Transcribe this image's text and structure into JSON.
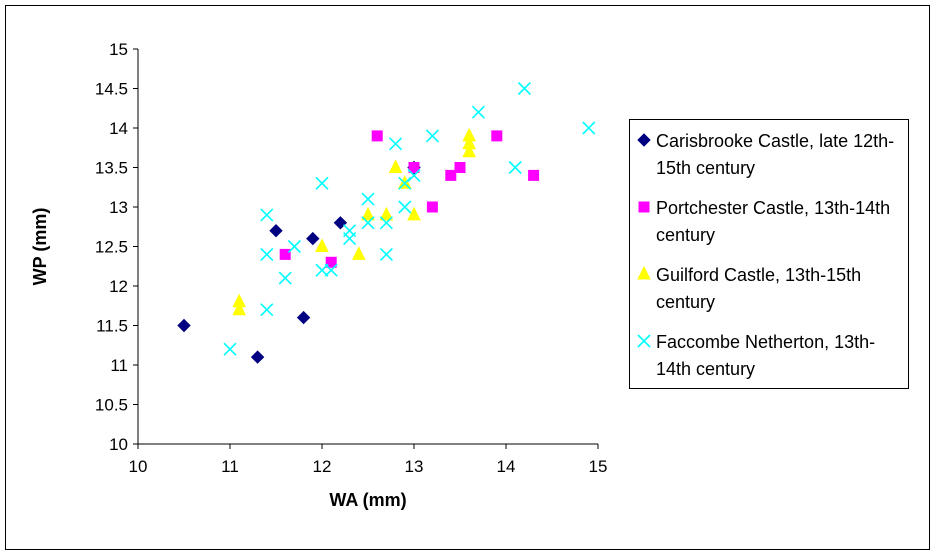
{
  "chart_data": {
    "type": "scatter",
    "xlabel": "WA (mm)",
    "ylabel": "WP (mm)",
    "xlim": [
      10,
      15
    ],
    "ylim": [
      10,
      15
    ],
    "x_ticks": [
      "10",
      "11",
      "12",
      "13",
      "14",
      "15"
    ],
    "y_ticks": [
      "10",
      "10.5",
      "11",
      "11.5",
      "12",
      "12.5",
      "13",
      "13.5",
      "14",
      "14.5",
      "15"
    ],
    "grid": false,
    "legend_position": "right",
    "series": [
      {
        "name": "Carisbrooke Castle, late 12th-15th century",
        "marker": "diamond",
        "color": "#000080",
        "points": [
          [
            10.5,
            11.5
          ],
          [
            11.3,
            11.1
          ],
          [
            11.5,
            12.7
          ],
          [
            11.8,
            11.6
          ],
          [
            11.9,
            12.6
          ],
          [
            12.2,
            12.8
          ],
          [
            13.0,
            13.5
          ]
        ]
      },
      {
        "name": "Portchester Castle, 13th-14th century",
        "marker": "square",
        "color": "#FF00FF",
        "points": [
          [
            11.6,
            12.4
          ],
          [
            12.1,
            12.3
          ],
          [
            12.6,
            13.9
          ],
          [
            13.0,
            13.5
          ],
          [
            13.2,
            13.0
          ],
          [
            13.4,
            13.4
          ],
          [
            13.5,
            13.5
          ],
          [
            13.9,
            13.9
          ],
          [
            14.3,
            13.4
          ]
        ]
      },
      {
        "name": "Guilford Castle, 13th-15th century",
        "marker": "triangle",
        "color": "#FFFF00",
        "points": [
          [
            11.1,
            11.8
          ],
          [
            11.1,
            11.7
          ],
          [
            12.0,
            12.5
          ],
          [
            12.4,
            12.4
          ],
          [
            12.5,
            12.9
          ],
          [
            12.7,
            12.9
          ],
          [
            12.8,
            13.5
          ],
          [
            12.9,
            13.3
          ],
          [
            13.0,
            12.9
          ],
          [
            13.6,
            13.9
          ],
          [
            13.6,
            13.8
          ],
          [
            13.6,
            13.7
          ]
        ]
      },
      {
        "name": "Faccombe Netherton, 13th-14th century",
        "marker": "x",
        "color": "#00FFFF",
        "points": [
          [
            11.0,
            11.2
          ],
          [
            11.4,
            11.7
          ],
          [
            11.4,
            12.4
          ],
          [
            11.4,
            12.9
          ],
          [
            11.6,
            12.1
          ],
          [
            11.7,
            12.5
          ],
          [
            12.0,
            12.2
          ],
          [
            12.0,
            13.3
          ],
          [
            12.1,
            12.2
          ],
          [
            12.3,
            12.6
          ],
          [
            12.3,
            12.7
          ],
          [
            12.5,
            12.8
          ],
          [
            12.5,
            13.1
          ],
          [
            12.7,
            12.4
          ],
          [
            12.7,
            12.8
          ],
          [
            12.8,
            13.8
          ],
          [
            12.9,
            13.0
          ],
          [
            12.9,
            13.3
          ],
          [
            13.0,
            13.4
          ],
          [
            13.2,
            13.9
          ],
          [
            13.7,
            14.2
          ],
          [
            14.1,
            13.5
          ],
          [
            14.2,
            14.5
          ],
          [
            14.9,
            14.0
          ]
        ]
      }
    ]
  }
}
